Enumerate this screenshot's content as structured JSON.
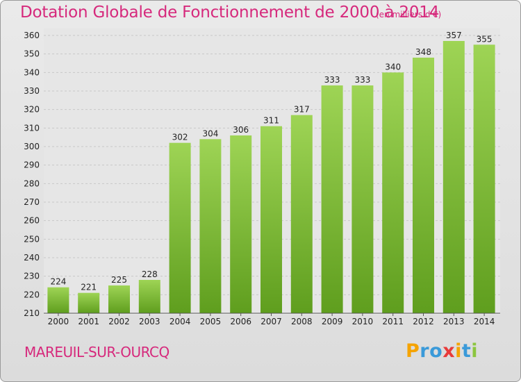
{
  "header": {
    "title": "Dotation Globale de Fonctionnement de 2000 à 2014",
    "unit_note": "(en milliers d'€)"
  },
  "footer": {
    "city": "MAREUIL-SUR-OURCQ",
    "logo_letters": [
      "P",
      "r",
      "o",
      "x",
      "i",
      "t",
      "i"
    ],
    "logo_colors": [
      "#f5a300",
      "#3a9ad9",
      "#3a9ad9",
      "#e83a3a",
      "#f5a300",
      "#3a9ad9",
      "#8cc63f"
    ]
  },
  "chart_data": {
    "type": "bar",
    "title": "Dotation Globale de Fonctionnement de 2000 à 2014",
    "subtitle": "(en milliers d'€)",
    "categories": [
      "2000",
      "2001",
      "2002",
      "2003",
      "2004",
      "2005",
      "2006",
      "2007",
      "2008",
      "2009",
      "2010",
      "2011",
      "2012",
      "2013",
      "2014"
    ],
    "values": [
      224,
      221,
      225,
      228,
      302,
      304,
      306,
      311,
      317,
      333,
      333,
      340,
      348,
      357,
      355
    ],
    "ylim": [
      210,
      360
    ],
    "yticks": [
      210,
      220,
      230,
      240,
      250,
      260,
      270,
      280,
      290,
      300,
      310,
      320,
      330,
      340,
      350,
      360
    ],
    "grid": true,
    "bar_color": "#7cc13a",
    "bar_color_light": "#9ed455",
    "bar_color_dark": "#5f9e1e"
  }
}
